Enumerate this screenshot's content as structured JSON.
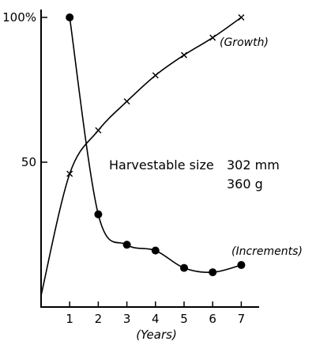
{
  "chart_data": {
    "type": "line",
    "x": [
      1,
      2,
      3,
      4,
      5,
      6,
      7
    ],
    "xlabel": "(Years)",
    "ylabel": "",
    "xlim": [
      0,
      7.5
    ],
    "ylim": [
      0,
      100
    ],
    "x_ticks": [
      "1",
      "2",
      "3",
      "4",
      "5",
      "6",
      "7"
    ],
    "y_ticks": [
      {
        "value": 50,
        "label": "50"
      },
      {
        "value": 100,
        "label": "100%"
      }
    ],
    "series": [
      {
        "name": "(Growth)",
        "marker": "x",
        "x": [
          0,
          1,
          2,
          3,
          4,
          5,
          6,
          7
        ],
        "values": [
          4,
          46,
          61,
          71,
          80,
          87,
          93,
          100
        ]
      },
      {
        "name": "(Increments)",
        "marker": "filled-circle",
        "x": [
          1,
          2,
          3,
          4,
          5,
          6,
          7
        ],
        "values": [
          100,
          32,
          21.5,
          19.5,
          13.5,
          12,
          14.5
        ]
      }
    ],
    "annotation": {
      "line1": "Harvestable size",
      "value1": "302 mm",
      "value2": "360 g"
    },
    "grid": false,
    "legend": "none"
  }
}
